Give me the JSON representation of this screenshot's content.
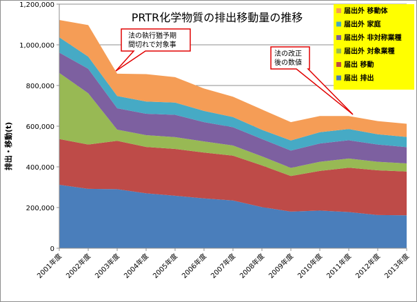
{
  "chart_data": {
    "type": "area",
    "stacked": true,
    "title": "PRTR化学物質の排出移動量の推移",
    "ylabel": "排出・移動(t)",
    "xlabel": "",
    "ylim": [
      0,
      1200000
    ],
    "yticks": [
      0,
      200000,
      400000,
      600000,
      800000,
      1000000,
      1200000
    ],
    "ytick_labels": [
      "0",
      "200,000",
      "400,000",
      "600,000",
      "800,000",
      "1,000,000",
      "1,200,000"
    ],
    "grid": true,
    "legend": "right",
    "categories": [
      "2001年度",
      "2002年度",
      "2003年度",
      "2004年度",
      "2005年度",
      "2006年度",
      "2007年度",
      "2008年度",
      "2009年度",
      "2010年度",
      "2011年度",
      "2012年度",
      "2013年度"
    ],
    "series": [
      {
        "name": "届出 排出",
        "color": "#4a7ebb",
        "values": [
          312000,
          292000,
          290000,
          270000,
          258000,
          245000,
          235000,
          202000,
          180000,
          185000,
          178000,
          163000,
          162000
        ]
      },
      {
        "name": "届出 移動",
        "color": "#be4b48",
        "values": [
          225000,
          218000,
          238000,
          228000,
          230000,
          225000,
          220000,
          205000,
          175000,
          195000,
          218000,
          220000,
          215000
        ]
      },
      {
        "name": "届出外 対象業種",
        "color": "#98b954",
        "values": [
          325000,
          252000,
          55000,
          58000,
          58000,
          55000,
          50000,
          45000,
          40000,
          45000,
          45000,
          42000,
          40000
        ]
      },
      {
        "name": "届出外 非対称業種",
        "color": "#7d60a0",
        "values": [
          100000,
          120000,
          105000,
          105000,
          110000,
          95000,
          90000,
          85000,
          85000,
          90000,
          90000,
          85000,
          80000
        ]
      },
      {
        "name": "届出外 家庭",
        "color": "#46aac5",
        "values": [
          75000,
          60000,
          60000,
          60000,
          60000,
          55000,
          50000,
          45000,
          50000,
          55000,
          55000,
          50000,
          50000
        ]
      },
      {
        "name": "届出外 移動体",
        "color": "#f59d56",
        "values": [
          85000,
          155000,
          110000,
          135000,
          125000,
          110000,
          100000,
          100000,
          90000,
          80000,
          64000,
          65000,
          65000
        ]
      }
    ],
    "annotations": [
      {
        "id": "enforcement",
        "lines": [
          "法の執行猶予期",
          "間切れで対象事"
        ]
      },
      {
        "id": "revision",
        "lines": [
          "法の改正",
          "後の数値"
        ]
      }
    ]
  }
}
